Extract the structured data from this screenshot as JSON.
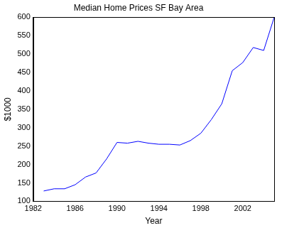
{
  "chart_data": {
    "type": "line",
    "title": "Median Home Prices SF Bay Area",
    "x_label": "Year",
    "y_label": "$1000",
    "x": [
      1983,
      1984,
      1985,
      1986,
      1987,
      1988,
      1989,
      1990,
      1991,
      1992,
      1993,
      1994,
      1995,
      1996,
      1997,
      1998,
      1999,
      2000,
      2001,
      2002,
      2003,
      2004,
      2005
    ],
    "values": [
      128,
      134,
      134,
      145,
      166,
      177,
      215,
      260,
      258,
      263,
      258,
      255,
      255,
      253,
      265,
      285,
      322,
      365,
      455,
      477,
      518,
      510,
      600
    ],
    "color": "#0000ff",
    "xlim": [
      1982,
      2005
    ],
    "xticks": [
      1982,
      1986,
      1990,
      1994,
      1998,
      2002
    ],
    "ylim": [
      100,
      600
    ],
    "yticks": [
      100,
      150,
      200,
      250,
      300,
      350,
      400,
      450,
      500,
      550,
      600
    ],
    "grid": false
  }
}
